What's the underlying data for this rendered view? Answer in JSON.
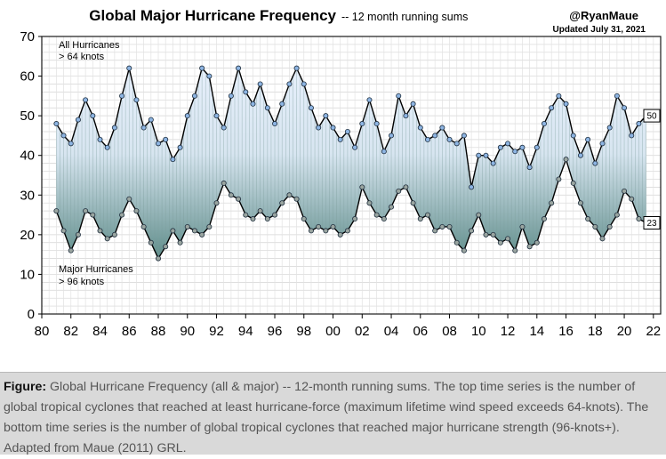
{
  "chart_data": {
    "type": "line",
    "title": "Global Major Hurricane Frequency",
    "subtitle": "-- 12 month running sums",
    "credit": "@RyanMaue",
    "updated": "Updated July 31, 2021",
    "xlabel": "",
    "ylabel": "",
    "xlim": [
      1980,
      2022.5
    ],
    "ylim": [
      0,
      70
    ],
    "x_ticks": [
      1980,
      1982,
      1984,
      1986,
      1988,
      1990,
      1992,
      1994,
      1996,
      1998,
      2000,
      2002,
      2004,
      2006,
      2008,
      2010,
      2012,
      2014,
      2016,
      2018,
      2020,
      2022
    ],
    "x_tick_labels": [
      "80",
      "82",
      "84",
      "86",
      "88",
      "90",
      "92",
      "94",
      "96",
      "98",
      "00",
      "02",
      "04",
      "06",
      "08",
      "10",
      "12",
      "14",
      "16",
      "18",
      "20",
      "22"
    ],
    "y_ticks": [
      0,
      10,
      20,
      30,
      40,
      50,
      60,
      70
    ],
    "y_tick_labels": [
      "0",
      "10",
      "20",
      "30",
      "40",
      "50",
      "60",
      "70"
    ],
    "grid": true,
    "series_labels": {
      "all_line1": "All Hurricanes",
      "all_line2": "> 64 knots",
      "major_line1": "Major Hurricanes",
      "major_line2": "> 96 knots"
    },
    "series": [
      {
        "key": "all",
        "color": "#000000",
        "marker": "#8db4e2",
        "last_value_label": "50",
        "x": [
          1981.0,
          1981.5,
          1982.0,
          1982.5,
          1983.0,
          1983.5,
          1984.0,
          1984.5,
          1985.0,
          1985.5,
          1986.0,
          1986.5,
          1987.0,
          1987.5,
          1988.0,
          1988.5,
          1989.0,
          1989.5,
          1990.0,
          1990.5,
          1991.0,
          1991.5,
          1992.0,
          1992.5,
          1993.0,
          1993.5,
          1994.0,
          1994.5,
          1995.0,
          1995.5,
          1996.0,
          1996.5,
          1997.0,
          1997.5,
          1998.0,
          1998.5,
          1999.0,
          1999.5,
          2000.0,
          2000.5,
          2001.0,
          2001.5,
          2002.0,
          2002.5,
          2003.0,
          2003.5,
          2004.0,
          2004.5,
          2005.0,
          2005.5,
          2006.0,
          2006.5,
          2007.0,
          2007.5,
          2008.0,
          2008.5,
          2009.0,
          2009.5,
          2010.0,
          2010.5,
          2011.0,
          2011.5,
          2012.0,
          2012.5,
          2013.0,
          2013.5,
          2014.0,
          2014.5,
          2015.0,
          2015.5,
          2016.0,
          2016.5,
          2017.0,
          2017.5,
          2018.0,
          2018.5,
          2019.0,
          2019.5,
          2020.0,
          2020.5,
          2021.0,
          2021.5
        ],
        "values": [
          48,
          45,
          43,
          49,
          54,
          50,
          44,
          42,
          47,
          55,
          62,
          54,
          47,
          49,
          43,
          44,
          39,
          42,
          50,
          55,
          62,
          60,
          50,
          47,
          55,
          62,
          56,
          53,
          58,
          52,
          48,
          53,
          58,
          62,
          58,
          52,
          47,
          50,
          47,
          44,
          46,
          42,
          48,
          54,
          48,
          41,
          45,
          55,
          50,
          53,
          47,
          44,
          45,
          47,
          44,
          43,
          45,
          32,
          40,
          40,
          38,
          42,
          43,
          41,
          42,
          37,
          42,
          48,
          52,
          55,
          53,
          45,
          40,
          44,
          38,
          43,
          47,
          55,
          52,
          45,
          48,
          50
        ]
      },
      {
        "key": "major",
        "color": "#000000",
        "marker": "#9aa5a0",
        "last_value_label": "23",
        "x": [
          1981.0,
          1981.5,
          1982.0,
          1982.5,
          1983.0,
          1983.5,
          1984.0,
          1984.5,
          1985.0,
          1985.5,
          1986.0,
          1986.5,
          1987.0,
          1987.5,
          1988.0,
          1988.5,
          1989.0,
          1989.5,
          1990.0,
          1990.5,
          1991.0,
          1991.5,
          1992.0,
          1992.5,
          1993.0,
          1993.5,
          1994.0,
          1994.5,
          1995.0,
          1995.5,
          1996.0,
          1996.5,
          1997.0,
          1997.5,
          1998.0,
          1998.5,
          1999.0,
          1999.5,
          2000.0,
          2000.5,
          2001.0,
          2001.5,
          2002.0,
          2002.5,
          2003.0,
          2003.5,
          2004.0,
          2004.5,
          2005.0,
          2005.5,
          2006.0,
          2006.5,
          2007.0,
          2007.5,
          2008.0,
          2008.5,
          2009.0,
          2009.5,
          2010.0,
          2010.5,
          2011.0,
          2011.5,
          2012.0,
          2012.5,
          2013.0,
          2013.5,
          2014.0,
          2014.5,
          2015.0,
          2015.5,
          2016.0,
          2016.5,
          2017.0,
          2017.5,
          2018.0,
          2018.5,
          2019.0,
          2019.5,
          2020.0,
          2020.5,
          2021.0,
          2021.5
        ],
        "values": [
          26,
          21,
          16,
          20,
          26,
          25,
          21,
          19,
          20,
          25,
          29,
          26,
          22,
          18,
          14,
          17,
          21,
          18,
          22,
          21,
          20,
          22,
          28,
          33,
          30,
          29,
          25,
          24,
          26,
          24,
          25,
          28,
          30,
          29,
          24,
          21,
          22,
          21,
          22,
          20,
          21,
          24,
          32,
          28,
          25,
          24,
          27,
          31,
          32,
          28,
          24,
          25,
          21,
          22,
          22,
          18,
          16,
          21,
          25,
          20,
          20,
          18,
          19,
          16,
          22,
          17,
          18,
          24,
          28,
          34,
          39,
          33,
          28,
          24,
          22,
          19,
          22,
          25,
          31,
          29,
          24,
          23
        ]
      }
    ]
  },
  "caption": {
    "bold": "Figure:",
    "text": " Global Hurricane Frequency (all & major) -- 12-month running sums. The top time series is the number of global tropical cyclones that reached at least hurricane-force (maximum lifetime wind speed exceeds 64-knots). The bottom time series is the number of global tropical cyclones that reached major hurricane strength (96-knots+). Adapted from Maue (2011) GRL."
  }
}
